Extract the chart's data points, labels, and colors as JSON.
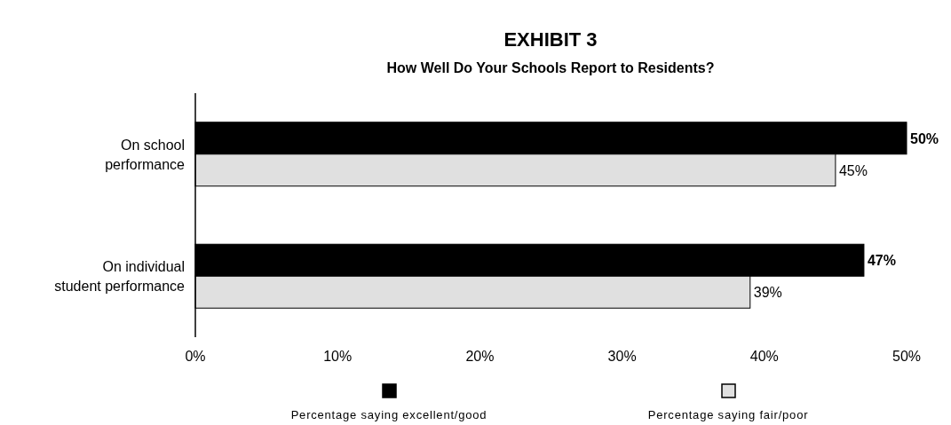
{
  "chart_data": {
    "type": "bar",
    "orientation": "horizontal",
    "title": "EXHIBIT 3",
    "subtitle": "How Well Do Your Schools Report to Residents?",
    "categories": [
      "On school performance",
      "On individual student performance"
    ],
    "series": [
      {
        "name": "Percentage saying excellent/good",
        "color": "#000000",
        "values": [
          50,
          47
        ],
        "value_labels": [
          "50%",
          "47%"
        ]
      },
      {
        "name": "Percentage saying fair/poor",
        "color": "#e0e0e0",
        "values": [
          45,
          39
        ],
        "value_labels": [
          "45%",
          "39%"
        ]
      }
    ],
    "xlim": [
      0,
      50
    ],
    "xticks": [
      {
        "value": 0,
        "label": "0%"
      },
      {
        "value": 10,
        "label": "10%"
      },
      {
        "value": 20,
        "label": "20%"
      },
      {
        "value": 30,
        "label": "30%"
      },
      {
        "value": 40,
        "label": "40%"
      },
      {
        "value": 50,
        "label": "50%"
      }
    ],
    "grid": false,
    "legend": "bottom"
  }
}
